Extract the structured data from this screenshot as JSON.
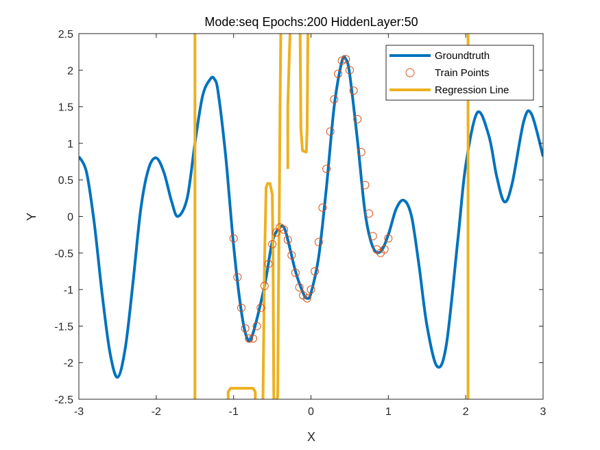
{
  "chart_data": {
    "type": "line",
    "title": "Mode:seq Epochs:200 HiddenLayer:50",
    "xlabel": "X",
    "ylabel": "Y",
    "xlim": [
      -3,
      3
    ],
    "ylim": [
      -2.5,
      2.5
    ],
    "xticks": [
      -3,
      -2,
      -1,
      0,
      1,
      2,
      3
    ],
    "xtick_labels": [
      "-3",
      "-2",
      "-1",
      "0",
      "1",
      "2",
      "3"
    ],
    "yticks": [
      -2.5,
      -2,
      -1.5,
      -1,
      -0.5,
      0,
      0.5,
      1,
      1.5,
      2,
      2.5
    ],
    "ytick_labels": [
      "-2.5",
      "-2",
      "-1.5",
      "-1",
      "-0.5",
      "0",
      "0.5",
      "1",
      "1.5",
      "2",
      "2.5"
    ],
    "grid": false,
    "legend_position": "top-right",
    "colors": {
      "groundtruth": "#0072BD",
      "train_points": "#D95319",
      "regression": "#EDB120"
    },
    "series": [
      {
        "name": "Groundtruth",
        "style": "line",
        "x": [
          -3.0,
          -2.9,
          -2.8,
          -2.7,
          -2.6,
          -2.5,
          -2.4,
          -2.3,
          -2.2,
          -2.1,
          -2.0,
          -1.9,
          -1.8,
          -1.72,
          -1.6,
          -1.5,
          -1.4,
          -1.3,
          -1.25,
          -1.2,
          -1.1,
          -1.0,
          -0.9,
          -0.82,
          -0.75,
          -0.6,
          -0.5,
          -0.4,
          -0.33,
          -0.2,
          -0.1,
          -0.05,
          0.0,
          0.1,
          0.2,
          0.3,
          0.4,
          0.45,
          0.5,
          0.6,
          0.7,
          0.8,
          0.9,
          1.0,
          1.1,
          1.2,
          1.3,
          1.4,
          1.5,
          1.63,
          1.75,
          1.9,
          2.0,
          2.15,
          2.3,
          2.4,
          2.5,
          2.6,
          2.75,
          2.85,
          3.0
        ],
        "y": [
          0.82,
          0.6,
          -0.1,
          -1.05,
          -1.85,
          -2.2,
          -1.8,
          -0.9,
          0.1,
          0.65,
          0.8,
          0.6,
          0.2,
          0.0,
          0.25,
          1.0,
          1.65,
          1.88,
          1.88,
          1.7,
          0.8,
          -0.4,
          -1.3,
          -1.68,
          -1.6,
          -0.95,
          -0.35,
          -0.15,
          -0.2,
          -0.75,
          -1.05,
          -1.12,
          -1.05,
          -0.55,
          0.4,
          1.5,
          2.12,
          2.15,
          1.95,
          1.05,
          0.05,
          -0.42,
          -0.48,
          -0.25,
          0.1,
          0.22,
          0.0,
          -0.7,
          -1.5,
          -2.05,
          -1.75,
          -0.3,
          0.7,
          1.42,
          1.1,
          0.55,
          0.2,
          0.45,
          1.3,
          1.4,
          0.82
        ]
      },
      {
        "name": "Train Points",
        "style": "markers",
        "x": [
          -1.0,
          -0.95,
          -0.9,
          -0.85,
          -0.8,
          -0.75,
          -0.7,
          -0.65,
          -0.6,
          -0.55,
          -0.5,
          -0.45,
          -0.4,
          -0.35,
          -0.3,
          -0.25,
          -0.2,
          -0.15,
          -0.1,
          -0.05,
          0.0,
          0.05,
          0.1,
          0.15,
          0.2,
          0.25,
          0.3,
          0.35,
          0.4,
          0.45,
          0.5,
          0.55,
          0.6,
          0.65,
          0.7,
          0.75,
          0.8,
          0.85,
          0.9,
          0.95,
          1.0
        ],
        "y": [
          -0.3,
          -0.83,
          -1.25,
          -1.53,
          -1.67,
          -1.67,
          -1.5,
          -1.25,
          -0.95,
          -0.65,
          -0.38,
          -0.22,
          -0.15,
          -0.18,
          -0.32,
          -0.53,
          -0.77,
          -0.97,
          -1.08,
          -1.12,
          -1.0,
          -0.75,
          -0.35,
          0.12,
          0.65,
          1.16,
          1.6,
          1.95,
          2.13,
          2.15,
          2.0,
          1.72,
          1.33,
          0.88,
          0.43,
          0.04,
          -0.27,
          -0.45,
          -0.5,
          -0.45,
          -0.3
        ]
      },
      {
        "name": "Regression Line",
        "style": "line",
        "segments": [
          {
            "x": [
              -1.5,
              -1.5
            ],
            "y": [
              2.5,
              -2.5
            ]
          },
          {
            "x": [
              -1.07,
              -1.07,
              -1.04,
              -0.75,
              -0.72,
              -0.72
            ],
            "y": [
              -2.5,
              -2.4,
              -2.35,
              -2.35,
              -2.4,
              -2.5
            ]
          },
          {
            "x": [
              -0.62,
              -0.6,
              -0.58,
              -0.56,
              -0.53,
              -0.5,
              -0.49,
              -0.48
            ],
            "y": [
              -2.5,
              -0.6,
              0.4,
              0.45,
              0.45,
              0.3,
              -0.6,
              -2.5
            ]
          },
          {
            "x": [
              -0.44,
              -0.43,
              -0.42,
              -0.41,
              -0.4,
              -0.39
            ],
            "y": [
              -2.5,
              -2.45,
              -1.0,
              0.0,
              1.5,
              2.5
            ]
          },
          {
            "x": [
              -0.3,
              -0.3,
              -0.28,
              -0.27
            ],
            "y": [
              0.65,
              1.5,
              2.2,
              2.5
            ]
          },
          {
            "x": [
              -0.14,
              -0.13,
              -0.11,
              -0.06,
              -0.05,
              -0.04
            ],
            "y": [
              2.5,
              1.2,
              0.9,
              0.88,
              1.2,
              2.5
            ]
          },
          {
            "x": [
              2.03,
              2.03
            ],
            "y": [
              2.5,
              -2.5
            ]
          }
        ]
      }
    ]
  }
}
